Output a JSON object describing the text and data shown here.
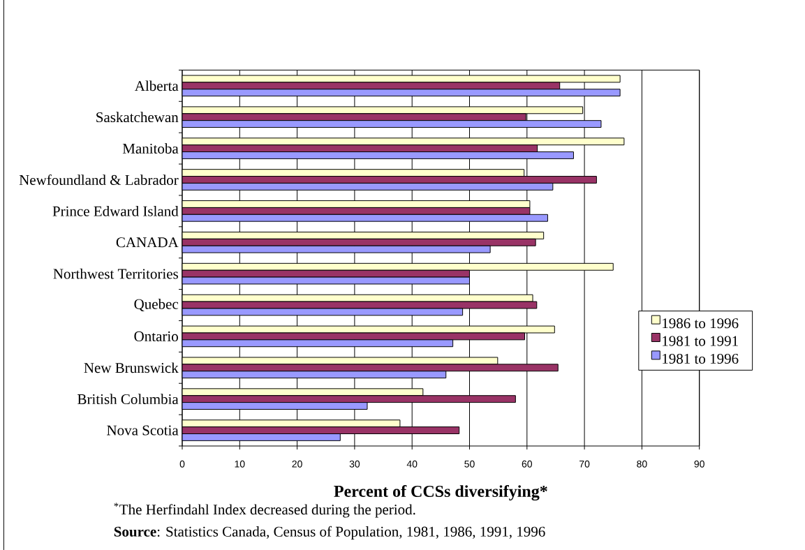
{
  "chart_data": {
    "type": "bar",
    "orientation": "horizontal",
    "xlabel": "Percent of CCSs diversifying*",
    "categories": [
      "Alberta",
      "Saskatchewan",
      "Manitoba",
      "Newfoundland & Labrador",
      "Prince Edward Island",
      "CANADA",
      "Northwest Territories",
      "Quebec",
      "Ontario",
      "New Brunswick",
      "British Columbia",
      "Nova Scotia"
    ],
    "series": [
      {
        "name": "1986 to 1996",
        "color": "#ffffcc",
        "values": [
          76.2,
          69.7,
          76.9,
          59.5,
          60.5,
          62.9,
          75,
          61,
          64.8,
          54.9,
          41.9,
          37.9
        ]
      },
      {
        "name": "1981 to 1991",
        "color": "#993366",
        "values": [
          65.7,
          59.8,
          61.8,
          72.1,
          60.5,
          61.5,
          50,
          61.7,
          59.6,
          65.4,
          58,
          48.2
        ]
      },
      {
        "name": "1981 to 1996",
        "color": "#9999ff",
        "values": [
          76.2,
          72.9,
          68.1,
          64.5,
          63.6,
          53.6,
          50,
          48.8,
          47.1,
          45.9,
          32.2,
          27.5
        ]
      }
    ],
    "xlim": [
      0,
      90
    ],
    "xticks": [
      0,
      10,
      20,
      30,
      40,
      50,
      60,
      70,
      80,
      90
    ],
    "grid": "x",
    "legend": "right",
    "annotations": [
      "$^{*}$The Herfindahl Index decreased during the period.",
      "**Source**:  Statistics Canada, Census of Population, 1981, 1986, 1991, 1996"
    ]
  }
}
